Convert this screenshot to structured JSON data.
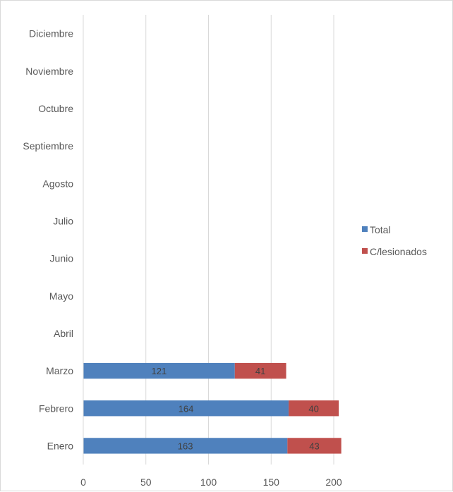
{
  "chart_data": {
    "type": "bar",
    "orientation": "horizontal",
    "stacked": true,
    "title": "",
    "xlabel": "",
    "ylabel": "",
    "categories": [
      "Enero",
      "Febrero",
      "Marzo",
      "Abril",
      "Mayo",
      "Junio",
      "Julio",
      "Agosto",
      "Septiembre",
      "Octubre",
      "Noviembre",
      "Diciembre"
    ],
    "series": [
      {
        "name": "Total",
        "color": "#4f81bd",
        "values": [
          163,
          164,
          121,
          null,
          null,
          null,
          null,
          null,
          null,
          null,
          null,
          null
        ]
      },
      {
        "name": "C/lesionados",
        "color": "#c0504d",
        "values": [
          43,
          40,
          41,
          null,
          null,
          null,
          null,
          null,
          null,
          null,
          null,
          null
        ]
      }
    ],
    "xlim": [
      0,
      200
    ],
    "xticks": [
      0,
      50,
      100,
      150,
      200
    ],
    "grid": true,
    "legend_position": "right",
    "data_labels": true
  }
}
